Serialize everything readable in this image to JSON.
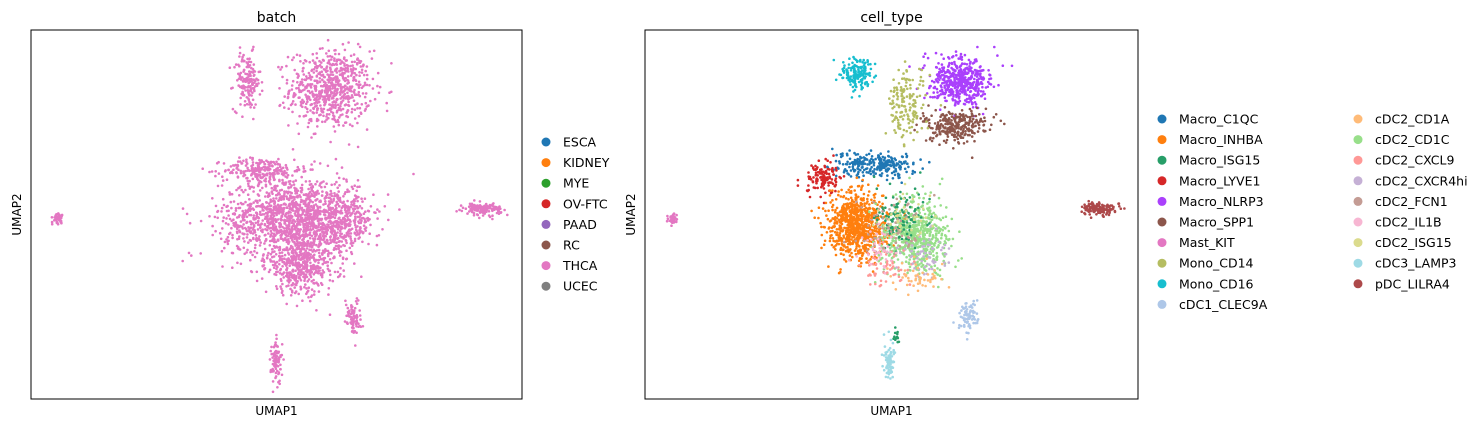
{
  "chart_data": [
    {
      "type": "scatter",
      "title": "batch",
      "xlabel": "UMAP1",
      "ylabel": "UMAP2",
      "grid": false,
      "ticks": false,
      "xlim": [
        0,
        10
      ],
      "ylim": [
        0,
        10
      ],
      "legend_placement": "right",
      "legend": [
        {
          "name": "ESCA",
          "color": "#1f77b4"
        },
        {
          "name": "KIDNEY",
          "color": "#ff7f0e"
        },
        {
          "name": "MYE",
          "color": "#2ca02c"
        },
        {
          "name": "OV-FTC",
          "color": "#d62728"
        },
        {
          "name": "PAAD",
          "color": "#9467bd"
        },
        {
          "name": "RC",
          "color": "#8c564b"
        },
        {
          "name": "THCA",
          "color": "#e377c2"
        },
        {
          "name": "UCEC",
          "color": "#7f7f7f"
        }
      ],
      "clusters": [
        {
          "category": "THCA",
          "cx": 6.1,
          "cy": 8.4,
          "sx": 0.75,
          "sy": 0.95,
          "n": 700
        },
        {
          "category": "THCA",
          "cx": 4.4,
          "cy": 8.6,
          "sx": 0.25,
          "sy": 0.7,
          "n": 160
        },
        {
          "category": "THCA",
          "cx": 4.7,
          "cy": 6.2,
          "sx": 0.7,
          "sy": 0.3,
          "n": 220
        },
        {
          "category": "THCA",
          "cx": 5.3,
          "cy": 4.9,
          "sx": 1.25,
          "sy": 1.0,
          "n": 1400
        },
        {
          "category": "THCA",
          "cx": 5.5,
          "cy": 3.6,
          "sx": 0.65,
          "sy": 0.7,
          "n": 450
        },
        {
          "category": "THCA",
          "cx": 6.3,
          "cy": 4.8,
          "sx": 0.6,
          "sy": 0.7,
          "n": 300
        },
        {
          "category": "THCA",
          "cx": 9.2,
          "cy": 5.15,
          "sx": 0.35,
          "sy": 0.14,
          "n": 140
        },
        {
          "category": "THCA",
          "cx": 0.55,
          "cy": 4.9,
          "sx": 0.09,
          "sy": 0.12,
          "n": 45
        },
        {
          "category": "THCA",
          "cx": 6.55,
          "cy": 2.25,
          "sx": 0.15,
          "sy": 0.45,
          "n": 80
        },
        {
          "category": "THCA",
          "cx": 5.0,
          "cy": 1.0,
          "sx": 0.1,
          "sy": 0.55,
          "n": 90
        }
      ]
    },
    {
      "type": "scatter",
      "title": "cell_type",
      "xlabel": "UMAP1",
      "ylabel": "UMAP2",
      "grid": false,
      "ticks": false,
      "xlim": [
        0,
        10
      ],
      "ylim": [
        0,
        10
      ],
      "legend_placement": "right",
      "legend": [
        {
          "name": "Macro_C1QC",
          "color": "#1f77b4"
        },
        {
          "name": "Macro_INHBA",
          "color": "#ff7f0e"
        },
        {
          "name": "Macro_ISG15",
          "color": "#279e68"
        },
        {
          "name": "Macro_LYVE1",
          "color": "#d62728"
        },
        {
          "name": "Macro_NLRP3",
          "color": "#aa40fc"
        },
        {
          "name": "Macro_SPP1",
          "color": "#8c564b"
        },
        {
          "name": "Mast_KIT",
          "color": "#e377c2"
        },
        {
          "name": "Mono_CD14",
          "color": "#b5bd61"
        },
        {
          "name": "Mono_CD16",
          "color": "#17becf"
        },
        {
          "name": "cDC1_CLEC9A",
          "color": "#aec7e8"
        },
        {
          "name": "cDC2_CD1A",
          "color": "#ffbb78"
        },
        {
          "name": "cDC2_CD1C",
          "color": "#98df8a"
        },
        {
          "name": "cDC2_CXCL9",
          "color": "#ff9896"
        },
        {
          "name": "cDC2_CXCR4hi",
          "color": "#c5b0d5"
        },
        {
          "name": "cDC2_FCN1",
          "color": "#c49c94"
        },
        {
          "name": "cDC2_IL1B",
          "color": "#f7b6d2"
        },
        {
          "name": "cDC2_ISG15",
          "color": "#dbdb8d"
        },
        {
          "name": "cDC3_LAMP3",
          "color": "#9edae5"
        },
        {
          "name": "pDC_LILRA4",
          "color": "#ad494a"
        }
      ],
      "clusters": [
        {
          "category": "Macro_NLRP3",
          "cx": 6.4,
          "cy": 8.6,
          "sx": 0.55,
          "sy": 0.6,
          "n": 520
        },
        {
          "category": "Macro_SPP1",
          "cx": 6.3,
          "cy": 7.4,
          "sx": 0.6,
          "sy": 0.4,
          "n": 280
        },
        {
          "category": "Mono_CD14",
          "cx": 5.3,
          "cy": 8.0,
          "sx": 0.35,
          "sy": 0.9,
          "n": 150
        },
        {
          "category": "Mono_CD16",
          "cx": 4.3,
          "cy": 8.8,
          "sx": 0.28,
          "sy": 0.35,
          "n": 170
        },
        {
          "category": "Macro_C1QC",
          "cx": 4.7,
          "cy": 6.35,
          "sx": 0.75,
          "sy": 0.3,
          "n": 260
        },
        {
          "category": "Macro_LYVE1",
          "cx": 3.6,
          "cy": 6.0,
          "sx": 0.3,
          "sy": 0.4,
          "n": 130
        },
        {
          "category": "Macro_INHBA",
          "cx": 4.3,
          "cy": 4.7,
          "sx": 0.55,
          "sy": 0.8,
          "n": 800
        },
        {
          "category": "cDC2_CD1C",
          "cx": 5.5,
          "cy": 4.4,
          "sx": 0.6,
          "sy": 0.85,
          "n": 650
        },
        {
          "category": "Macro_ISG15",
          "cx": 5.2,
          "cy": 4.9,
          "sx": 0.5,
          "sy": 0.8,
          "n": 120
        },
        {
          "category": "cDC2_FCN1",
          "cx": 5.0,
          "cy": 4.6,
          "sx": 0.6,
          "sy": 0.8,
          "n": 70
        },
        {
          "category": "cDC2_CXCL9",
          "cx": 4.9,
          "cy": 3.6,
          "sx": 0.45,
          "sy": 0.5,
          "n": 60
        },
        {
          "category": "cDC2_CXCR4hi",
          "cx": 5.7,
          "cy": 3.9,
          "sx": 0.45,
          "sy": 0.55,
          "n": 60
        },
        {
          "category": "cDC2_CD1A",
          "cx": 5.6,
          "cy": 3.3,
          "sx": 0.45,
          "sy": 0.4,
          "n": 50
        },
        {
          "category": "cDC2_IL1B",
          "cx": 4.8,
          "cy": 4.0,
          "sx": 0.5,
          "sy": 0.5,
          "n": 40
        },
        {
          "category": "cDC2_ISG15",
          "cx": 5.3,
          "cy": 5.0,
          "sx": 0.5,
          "sy": 0.5,
          "n": 40
        },
        {
          "category": "pDC_LILRA4",
          "cx": 9.2,
          "cy": 5.15,
          "sx": 0.35,
          "sy": 0.14,
          "n": 140
        },
        {
          "category": "Mast_KIT",
          "cx": 0.55,
          "cy": 4.9,
          "sx": 0.09,
          "sy": 0.12,
          "n": 45
        },
        {
          "category": "cDC1_CLEC9A",
          "cx": 6.55,
          "cy": 2.25,
          "sx": 0.15,
          "sy": 0.45,
          "n": 80
        },
        {
          "category": "cDC3_LAMP3",
          "cx": 4.95,
          "cy": 0.95,
          "sx": 0.1,
          "sy": 0.45,
          "n": 80
        },
        {
          "category": "Macro_ISG15",
          "cx": 5.1,
          "cy": 1.7,
          "sx": 0.04,
          "sy": 0.2,
          "n": 12
        }
      ]
    }
  ]
}
